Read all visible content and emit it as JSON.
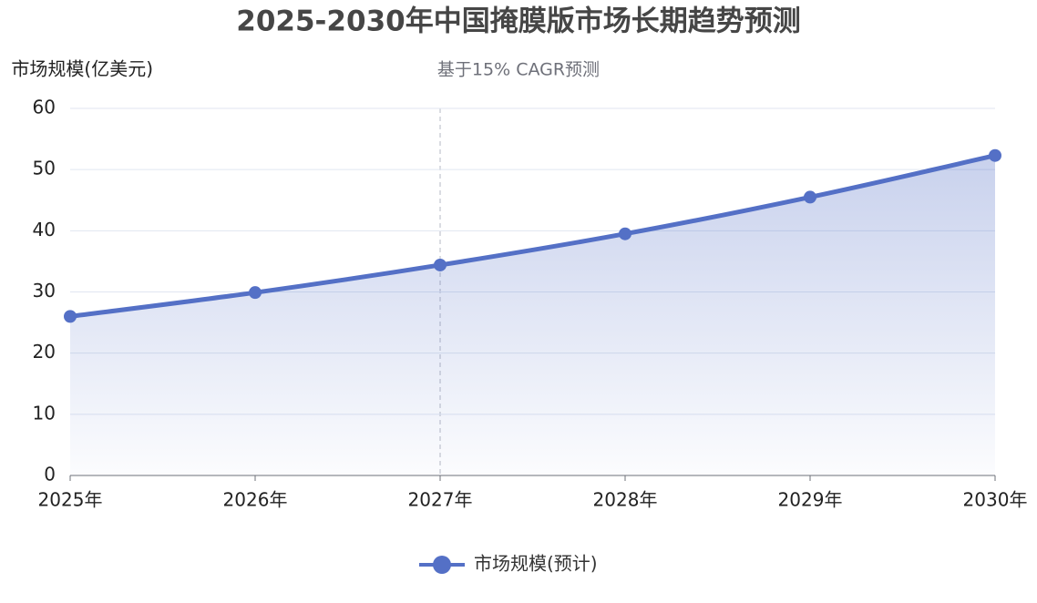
{
  "chart_data": {
    "type": "line",
    "title": "2025-2030年中国掩膜版市场长期趋势预测",
    "subtitle": "基于15% CAGR预测",
    "y_axis_label": "市场规模(亿美元)",
    "categories": [
      "2025年",
      "2026年",
      "2027年",
      "2028年",
      "2029年",
      "2030年"
    ],
    "series": [
      {
        "name": "市场规模(预计)",
        "color": "#5470c6",
        "values": [
          26.0,
          29.9,
          34.4,
          39.5,
          45.5,
          52.3
        ]
      }
    ],
    "ylim": [
      0,
      60
    ],
    "yticks": [
      0,
      10,
      20,
      30,
      40,
      50,
      60
    ],
    "grid": true,
    "area": true,
    "legend": "bottom"
  }
}
